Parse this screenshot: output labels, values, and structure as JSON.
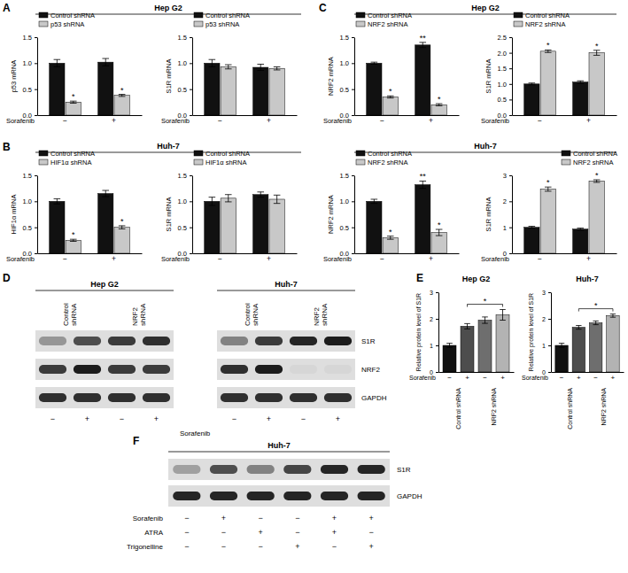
{
  "chart_data": [
    {
      "type": "bar",
      "y_label": "p53 mRNA",
      "x_label": "Sorafenib",
      "categories": [
        "−",
        "+"
      ],
      "series": [
        {
          "name": "Control shRNA",
          "color": "#111111",
          "values": [
            1,
            1.02
          ],
          "errors": [
            0.07,
            0.07
          ]
        },
        {
          "name": "p53 shRNA",
          "color": "#c8c8c8",
          "values": [
            0.25,
            0.38
          ],
          "errors": [
            0.02,
            0.02
          ],
          "annotations": [
            "*",
            "*"
          ]
        }
      ],
      "ylim": [
        0,
        1.5
      ],
      "yticks": [
        {
          "value": 0,
          "label": "0.0"
        },
        {
          "value": 0.5,
          "label": "0.5"
        },
        {
          "value": 1,
          "label": "1.0"
        },
        {
          "value": 1.5,
          "label": "1.5"
        }
      ],
      "legend": "top"
    },
    {
      "type": "bar",
      "y_label": "S1R mRNA",
      "x_label": "Sorafenib",
      "categories": [
        "−",
        "+"
      ],
      "series": [
        {
          "name": "Control shRNA",
          "color": "#111111",
          "values": [
            1,
            0.92
          ],
          "errors": [
            0.07,
            0.06
          ]
        },
        {
          "name": "p53 shRNA",
          "color": "#c8c8c8",
          "values": [
            0.93,
            0.9
          ],
          "errors": [
            0.04,
            0.03
          ]
        }
      ],
      "ylim": [
        0,
        1.5
      ],
      "yticks": [
        {
          "value": 0,
          "label": "0.0"
        },
        {
          "value": 0.5,
          "label": "0.5"
        },
        {
          "value": 1,
          "label": "1.0"
        },
        {
          "value": 1.5,
          "label": "1.5"
        }
      ],
      "legend": "top"
    },
    {
      "type": "bar",
      "y_label": "HIF1α mRNA",
      "x_label": "Sorafenib",
      "categories": [
        "−",
        "+"
      ],
      "series": [
        {
          "name": "Control shRNA",
          "color": "#111111",
          "values": [
            1,
            1.15
          ],
          "errors": [
            0.05,
            0.06
          ]
        },
        {
          "name": "HIF1α shRNA",
          "color": "#c8c8c8",
          "values": [
            0.25,
            0.5
          ],
          "errors": [
            0.02,
            0.03
          ],
          "annotations": [
            "*",
            "*"
          ]
        }
      ],
      "ylim": [
        0,
        1.5
      ],
      "yticks": [
        {
          "value": 0,
          "label": "0.0"
        },
        {
          "value": 0.5,
          "label": "0.5"
        },
        {
          "value": 1,
          "label": "1.0"
        },
        {
          "value": 1.5,
          "label": "1.5"
        }
      ],
      "legend": "top"
    },
    {
      "type": "bar",
      "y_label": "S1R mRNA",
      "x_label": "Sorafenib",
      "categories": [
        "−",
        "+"
      ],
      "series": [
        {
          "name": "Control shRNA",
          "color": "#111111",
          "values": [
            1,
            1.13
          ],
          "errors": [
            0.08,
            0.05
          ]
        },
        {
          "name": "HIF1α shRNA",
          "color": "#c8c8c8",
          "values": [
            1.06,
            1.04
          ],
          "errors": [
            0.07,
            0.08
          ]
        }
      ],
      "ylim": [
        0,
        1.5
      ],
      "yticks": [
        {
          "value": 0,
          "label": "0.0"
        },
        {
          "value": 0.5,
          "label": "0.5"
        },
        {
          "value": 1,
          "label": "1.0"
        },
        {
          "value": 1.5,
          "label": "1.5"
        }
      ],
      "legend": "top"
    },
    {
      "type": "bar",
      "y_label": "NRF2 mRNA",
      "x_label": "Sorafenib",
      "categories": [
        "−",
        "+"
      ],
      "series": [
        {
          "name": "Control shRNA",
          "color": "#111111",
          "values": [
            1,
            1.35
          ],
          "errors": [
            0.02,
            0.05
          ],
          "annotations": [
            null,
            "**"
          ]
        },
        {
          "name": "NRF2 shRNA",
          "color": "#c8c8c8",
          "values": [
            0.35,
            0.2
          ],
          "errors": [
            0.02,
            0.02
          ],
          "annotations": [
            "*",
            "*"
          ]
        }
      ],
      "ylim": [
        0,
        1.5
      ],
      "yticks": [
        {
          "value": 0,
          "label": "0.0"
        },
        {
          "value": 0.5,
          "label": "0.5"
        },
        {
          "value": 1,
          "label": "1.0"
        },
        {
          "value": 1.5,
          "label": "1.5"
        }
      ],
      "legend": "top"
    },
    {
      "type": "bar",
      "y_label": "S1R mRNA",
      "x_label": "Sorafenib",
      "categories": [
        "−",
        "+"
      ],
      "series": [
        {
          "name": "Control shRNA",
          "color": "#111111",
          "values": [
            1,
            1.06
          ],
          "errors": [
            0.03,
            0.04
          ]
        },
        {
          "name": "NRF2 shRNA",
          "color": "#c8c8c8",
          "values": [
            2.05,
            2.0
          ],
          "errors": [
            0.04,
            0.08
          ],
          "annotations": [
            "*",
            "*"
          ]
        }
      ],
      "ylim": [
        0,
        2.5
      ],
      "yticks": [
        {
          "value": 0,
          "label": "0.0"
        },
        {
          "value": 0.5,
          "label": "0.5"
        },
        {
          "value": 1,
          "label": "1.0"
        },
        {
          "value": 1.5,
          "label": "1.5"
        },
        {
          "value": 2,
          "label": "2.0"
        },
        {
          "value": 2.5,
          "label": "2.5"
        }
      ],
      "legend": "top"
    },
    {
      "type": "bar",
      "y_label": "NRF2 mRNA",
      "x_label": "Sorafenib",
      "categories": [
        "−",
        "+"
      ],
      "series": [
        {
          "name": "Control shRNA",
          "color": "#111111",
          "values": [
            1,
            1.32
          ],
          "errors": [
            0.04,
            0.07
          ],
          "annotations": [
            null,
            "**"
          ]
        },
        {
          "name": "NRF2 shRNA",
          "color": "#c8c8c8",
          "values": [
            0.3,
            0.4
          ],
          "errors": [
            0.03,
            0.06
          ],
          "annotations": [
            "*",
            "*"
          ]
        }
      ],
      "ylim": [
        0,
        1.5
      ],
      "yticks": [
        {
          "value": 0,
          "label": "0.0"
        },
        {
          "value": 0.5,
          "label": "0.5"
        },
        {
          "value": 1,
          "label": "1.0"
        },
        {
          "value": 1.5,
          "label": "1.5"
        }
      ],
      "legend": "top"
    },
    {
      "type": "bar",
      "y_label": "S1R mRNA",
      "x_label": "Sorafenib",
      "categories": [
        "−",
        "+"
      ],
      "series": [
        {
          "name": "Control shRNA",
          "color": "#111111",
          "values": [
            1,
            0.93
          ],
          "errors": [
            0.04,
            0.04
          ]
        },
        {
          "name": "NRF2 shRNA",
          "color": "#c8c8c8",
          "values": [
            2.47,
            2.78
          ],
          "errors": [
            0.08,
            0.05
          ],
          "annotations": [
            "*",
            "*"
          ]
        }
      ],
      "ylim": [
        0,
        3
      ],
      "yticks": [
        0,
        1,
        2,
        3
      ],
      "legend": "top-right"
    },
    {
      "type": "bar",
      "title": "Hep G2",
      "y_label": "Relative protein level of S1R",
      "x_label": "Sorafenib",
      "categories": [
        "−",
        "+",
        "−",
        "+"
      ],
      "values": [
        1,
        1.72,
        1.95,
        2.15
      ],
      "errors": [
        0.08,
        0.1,
        0.12,
        0.2
      ],
      "colors": [
        "#111111",
        "#4d4d4d",
        "#6e6e6e",
        "#b3b3b3"
      ],
      "group_labels": [
        "Control shRNA",
        "NRF2 shRNA"
      ],
      "brackets": [
        {
          "from": 1,
          "to": 3,
          "label": "*"
        }
      ],
      "ylim": [
        0,
        3
      ],
      "yticks": [
        0,
        1,
        2,
        3
      ]
    },
    {
      "type": "bar",
      "title": "Huh-7",
      "y_label": "Relative protein level of S1R",
      "x_label": "Sorafenib",
      "categories": [
        "−",
        "+",
        "−",
        "+"
      ],
      "values": [
        1,
        1.68,
        1.85,
        2.12
      ],
      "errors": [
        0.08,
        0.07,
        0.07,
        0.06
      ],
      "colors": [
        "#111111",
        "#4d4d4d",
        "#6e6e6e",
        "#b3b3b3"
      ],
      "group_labels": [
        "Control shRNA",
        "NRF2 shRNA"
      ],
      "brackets": [
        {
          "from": 1,
          "to": 3,
          "label": "*"
        }
      ],
      "ylim": [
        0,
        3
      ],
      "yticks": [
        0,
        1,
        2,
        3
      ]
    }
  ],
  "panel_labels": [
    "A",
    "B",
    "C",
    "D",
    "E",
    "F"
  ],
  "headers": [
    "Hep G2",
    "Huh-7",
    "Hep G2",
    "Huh-7"
  ],
  "blot_d": {
    "treatment": "Sorafenib",
    "rows": [
      "S1R",
      "NRF2",
      "GAPDH"
    ],
    "blots": [
      {
        "title": "Hep G2",
        "groups": [
          "Control shRNA",
          "NRF2 shRNA"
        ],
        "sorafenib": [
          "−",
          "+",
          "−",
          "+"
        ],
        "intensity": [
          [
            0.35,
            0.7,
            0.8,
            0.85
          ],
          [
            0.8,
            0.95,
            0.8,
            0.8
          ],
          [
            0.85,
            0.85,
            0.85,
            0.85
          ]
        ]
      },
      {
        "title": "Huh-7",
        "groups": [
          "Control shRNA",
          "NRF2 shRNA"
        ],
        "sorafenib": [
          "−",
          "+",
          "−",
          "+"
        ],
        "intensity": [
          [
            0.45,
            0.8,
            0.9,
            0.95
          ],
          [
            0.85,
            0.95,
            0.04,
            0.04
          ],
          [
            0.85,
            0.85,
            0.85,
            0.85
          ]
        ]
      }
    ]
  },
  "blot_f": {
    "title": "Huh-7",
    "rows": [
      "S1R",
      "GAPDH"
    ],
    "intensity": [
      [
        0.3,
        0.7,
        0.45,
        0.75,
        0.9,
        0.9
      ],
      [
        0.9,
        0.9,
        0.9,
        0.9,
        0.9,
        0.9
      ]
    ],
    "treatments": [
      {
        "name": "Sorafenib",
        "values": [
          "−",
          "+",
          "−",
          "−",
          "+",
          "+"
        ]
      },
      {
        "name": "ATRA",
        "values": [
          "−",
          "−",
          "+",
          "−",
          "+",
          "−"
        ]
      },
      {
        "name": "Trigonelline",
        "values": [
          "−",
          "−",
          "−",
          "+",
          "−",
          "+"
        ]
      }
    ]
  }
}
